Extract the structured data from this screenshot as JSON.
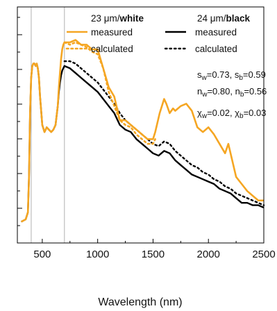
{
  "chart_data": {
    "type": "line",
    "xlabel": "Wavelength (nm)",
    "ylabel": "",
    "xlim": [
      275,
      2500
    ],
    "ylim": [
      0,
      1
    ],
    "x_ticks": [
      500,
      1000,
      1500,
      2000,
      2500
    ],
    "x_tick_labels": [
      "500",
      "1000",
      "1500",
      "2000",
      "2500"
    ],
    "y_tick_labels_visible": false,
    "y_minor_ticks": 13,
    "vertical_reference_lines": [
      400,
      700
    ],
    "grid": false,
    "legend": {
      "placement": "top",
      "groups": [
        {
          "title_plain": "23 μm/",
          "title_bold": "white"
        },
        {
          "title_plain": "24 μm/",
          "title_bold": "black"
        }
      ]
    },
    "annotations": {
      "s_line": [
        "s",
        "w",
        "=0.73, s",
        "b",
        "=0.59"
      ],
      "n_line": [
        "n",
        "w",
        "=0.80, n",
        "b",
        "=0.56"
      ],
      "chi_line": [
        "χ",
        "w",
        "=0.02, χ",
        "b",
        "=0.03"
      ]
    },
    "colors": {
      "white": "#f5a623",
      "black": "#000000"
    },
    "series": [
      {
        "name": "measured",
        "group": "white",
        "style": "solid",
        "x": [
          310,
          350,
          370,
          380,
          390,
          400,
          410,
          420,
          430,
          440,
          450,
          460,
          470,
          480,
          500,
          520,
          540,
          560,
          580,
          600,
          620,
          640,
          650,
          660,
          670,
          680,
          690,
          700,
          720,
          750,
          800,
          850,
          900,
          950,
          1000,
          1050,
          1100,
          1150,
          1200,
          1250,
          1300,
          1350,
          1400,
          1450,
          1500,
          1520,
          1560,
          1600,
          1620,
          1650,
          1680,
          1700,
          1750,
          1800,
          1850,
          1900,
          1950,
          2000,
          2050,
          2100,
          2150,
          2180,
          2200,
          2250,
          2300,
          2350,
          2400,
          2450,
          2500
        ],
        "y": [
          0.09,
          0.1,
          0.13,
          0.28,
          0.55,
          0.7,
          0.75,
          0.76,
          0.76,
          0.75,
          0.76,
          0.74,
          0.7,
          0.62,
          0.5,
          0.47,
          0.49,
          0.48,
          0.47,
          0.48,
          0.5,
          0.58,
          0.66,
          0.72,
          0.78,
          0.82,
          0.84,
          0.85,
          0.85,
          0.85,
          0.86,
          0.84,
          0.84,
          0.82,
          0.82,
          0.74,
          0.66,
          0.62,
          0.52,
          0.52,
          0.5,
          0.48,
          0.46,
          0.44,
          0.44,
          0.47,
          0.55,
          0.61,
          0.59,
          0.55,
          0.57,
          0.56,
          0.58,
          0.59,
          0.56,
          0.49,
          0.47,
          0.49,
          0.46,
          0.42,
          0.38,
          0.42,
          0.38,
          0.28,
          0.25,
          0.22,
          0.2,
          0.18,
          0.18
        ]
      },
      {
        "name": "calculated",
        "group": "white",
        "style": "dotted",
        "x": [
          700,
          750,
          800,
          850,
          900,
          950,
          1000,
          1050,
          1100,
          1150,
          1200,
          1250,
          1300,
          1350,
          1400,
          1450,
          1500,
          1520
        ],
        "y": [
          0.85,
          0.84,
          0.85,
          0.84,
          0.83,
          0.81,
          0.8,
          0.74,
          0.64,
          0.58,
          0.52,
          0.5,
          0.49,
          0.46,
          0.44,
          0.42,
          0.42,
          0.44
        ]
      },
      {
        "name": "measured",
        "group": "black",
        "style": "solid",
        "x": [
          310,
          350,
          370,
          380,
          390,
          400,
          410,
          420,
          430,
          440,
          450,
          460,
          470,
          480,
          500,
          520,
          540,
          560,
          580,
          600,
          620,
          640,
          650,
          660,
          670,
          680,
          690,
          700,
          750,
          800,
          850,
          900,
          950,
          1000,
          1050,
          1100,
          1150,
          1200,
          1250,
          1300,
          1350,
          1400,
          1450,
          1500,
          1550,
          1600,
          1650,
          1700,
          1750,
          1800,
          1850,
          1900,
          1950,
          2000,
          2050,
          2100,
          2150,
          2200,
          2250,
          2300,
          2350,
          2400,
          2450,
          2500
        ],
        "y": [
          0.09,
          0.1,
          0.13,
          0.28,
          0.55,
          0.7,
          0.75,
          0.76,
          0.76,
          0.75,
          0.76,
          0.74,
          0.7,
          0.62,
          0.5,
          0.47,
          0.49,
          0.48,
          0.47,
          0.48,
          0.5,
          0.58,
          0.64,
          0.68,
          0.71,
          0.73,
          0.74,
          0.75,
          0.74,
          0.72,
          0.7,
          0.68,
          0.66,
          0.64,
          0.61,
          0.58,
          0.55,
          0.5,
          0.48,
          0.47,
          0.44,
          0.42,
          0.4,
          0.38,
          0.37,
          0.39,
          0.38,
          0.35,
          0.33,
          0.31,
          0.29,
          0.28,
          0.27,
          0.26,
          0.25,
          0.23,
          0.22,
          0.21,
          0.19,
          0.17,
          0.17,
          0.16,
          0.16,
          0.15
        ]
      },
      {
        "name": "calculated",
        "group": "black",
        "style": "dotted",
        "x": [
          700,
          750,
          800,
          850,
          900,
          950,
          1000,
          1050,
          1100,
          1150,
          1200,
          1250,
          1300,
          1350,
          1400,
          1450,
          1500,
          1550,
          1600,
          1650,
          1700,
          1750,
          1800,
          1850,
          1900,
          1950,
          2000,
          2050,
          2100,
          2150,
          2200,
          2250,
          2300,
          2350,
          2400,
          2450,
          2500
        ],
        "y": [
          0.77,
          0.77,
          0.76,
          0.74,
          0.72,
          0.7,
          0.68,
          0.65,
          0.62,
          0.59,
          0.55,
          0.52,
          0.5,
          0.48,
          0.46,
          0.44,
          0.42,
          0.41,
          0.43,
          0.42,
          0.39,
          0.37,
          0.35,
          0.33,
          0.32,
          0.3,
          0.29,
          0.27,
          0.26,
          0.24,
          0.23,
          0.21,
          0.2,
          0.19,
          0.18,
          0.17,
          0.16
        ]
      }
    ]
  }
}
